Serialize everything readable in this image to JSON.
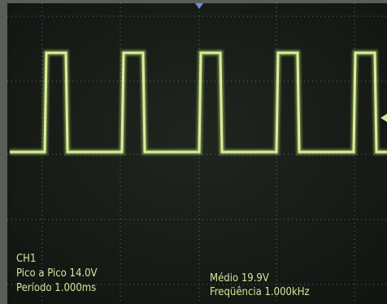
{
  "measurements": {
    "channel": "CH1",
    "peak_to_peak": "Pico a Pico 14.0V",
    "period": "Período 1.000ms",
    "mean": "Médio 19.9V",
    "frequency": "Freqüência 1.000kHz"
  }
}
